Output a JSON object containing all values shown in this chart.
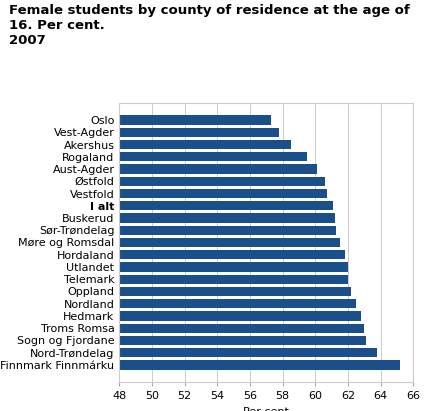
{
  "title": "Female students by county of residence at the age of 16. Per cent.\n2007",
  "categories": [
    "Finnmark Finnmárku",
    "Nord-Trøndelag",
    "Sogn og Fjordane",
    "Troms Romsa",
    "Hedmark",
    "Nordland",
    "Oppland",
    "Telemark",
    "Utlandet",
    "Hordaland",
    "Møre og Romsdal",
    "Sør-Trøndelag",
    "Buskerud",
    "I alt",
    "Vestfold",
    "Østfold",
    "Aust-Agder",
    "Rogaland",
    "Akershus",
    "Vest-Agder",
    "Oslo"
  ],
  "values": [
    65.2,
    63.8,
    63.1,
    63.0,
    62.8,
    62.5,
    62.2,
    62.0,
    62.0,
    61.8,
    61.5,
    61.3,
    61.2,
    61.1,
    60.7,
    60.6,
    60.1,
    59.5,
    58.5,
    57.8,
    57.3
  ],
  "bold_labels": [
    "I alt"
  ],
  "bar_color": "#1B4F8A",
  "xlabel": "Per cent",
  "xlim": [
    48,
    66
  ],
  "xticks": [
    48,
    50,
    52,
    54,
    56,
    58,
    60,
    62,
    64,
    66
  ],
  "grid_color": "#cccccc",
  "title_fontsize": 9.5,
  "label_fontsize": 8,
  "tick_fontsize": 8
}
